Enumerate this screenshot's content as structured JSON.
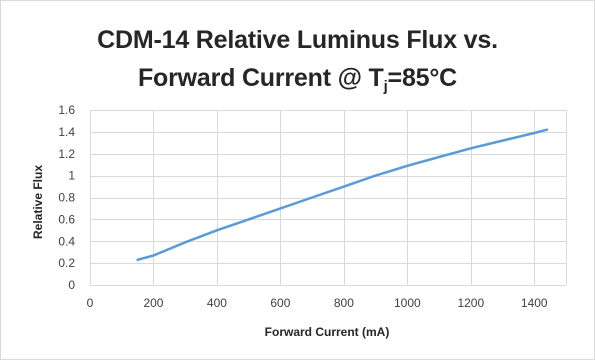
{
  "chart_data": {
    "type": "line",
    "title_line1": "CDM-14 Relative Luminus Flux vs.",
    "title_line2_prefix": "Forward Current @ T",
    "title_line2_sub": "j",
    "title_line2_suffix": "=85°C",
    "xlabel": "Forward Current (mA)",
    "ylabel": "Relative Flux",
    "xlim": [
      0,
      1500
    ],
    "ylim": [
      0,
      1.6
    ],
    "x_ticks": [
      0,
      200,
      400,
      600,
      800,
      1000,
      1200,
      1400
    ],
    "y_ticks": [
      0,
      0.2,
      0.4,
      0.6,
      0.8,
      1,
      1.2,
      1.4,
      1.6
    ],
    "y_tick_labels": [
      "0",
      "0.2",
      "0.4",
      "0.6",
      "0.8",
      "1",
      "1.2",
      "1.4",
      "1.6"
    ],
    "grid": true,
    "series": [
      {
        "color": "#5b9bd5",
        "x": [
          150,
          200,
          300,
          400,
          500,
          600,
          700,
          800,
          900,
          1000,
          1100,
          1200,
          1300,
          1400,
          1440
        ],
        "y": [
          0.23,
          0.27,
          0.39,
          0.5,
          0.6,
          0.7,
          0.8,
          0.9,
          1.0,
          1.09,
          1.17,
          1.25,
          1.32,
          1.39,
          1.42
        ]
      }
    ]
  }
}
